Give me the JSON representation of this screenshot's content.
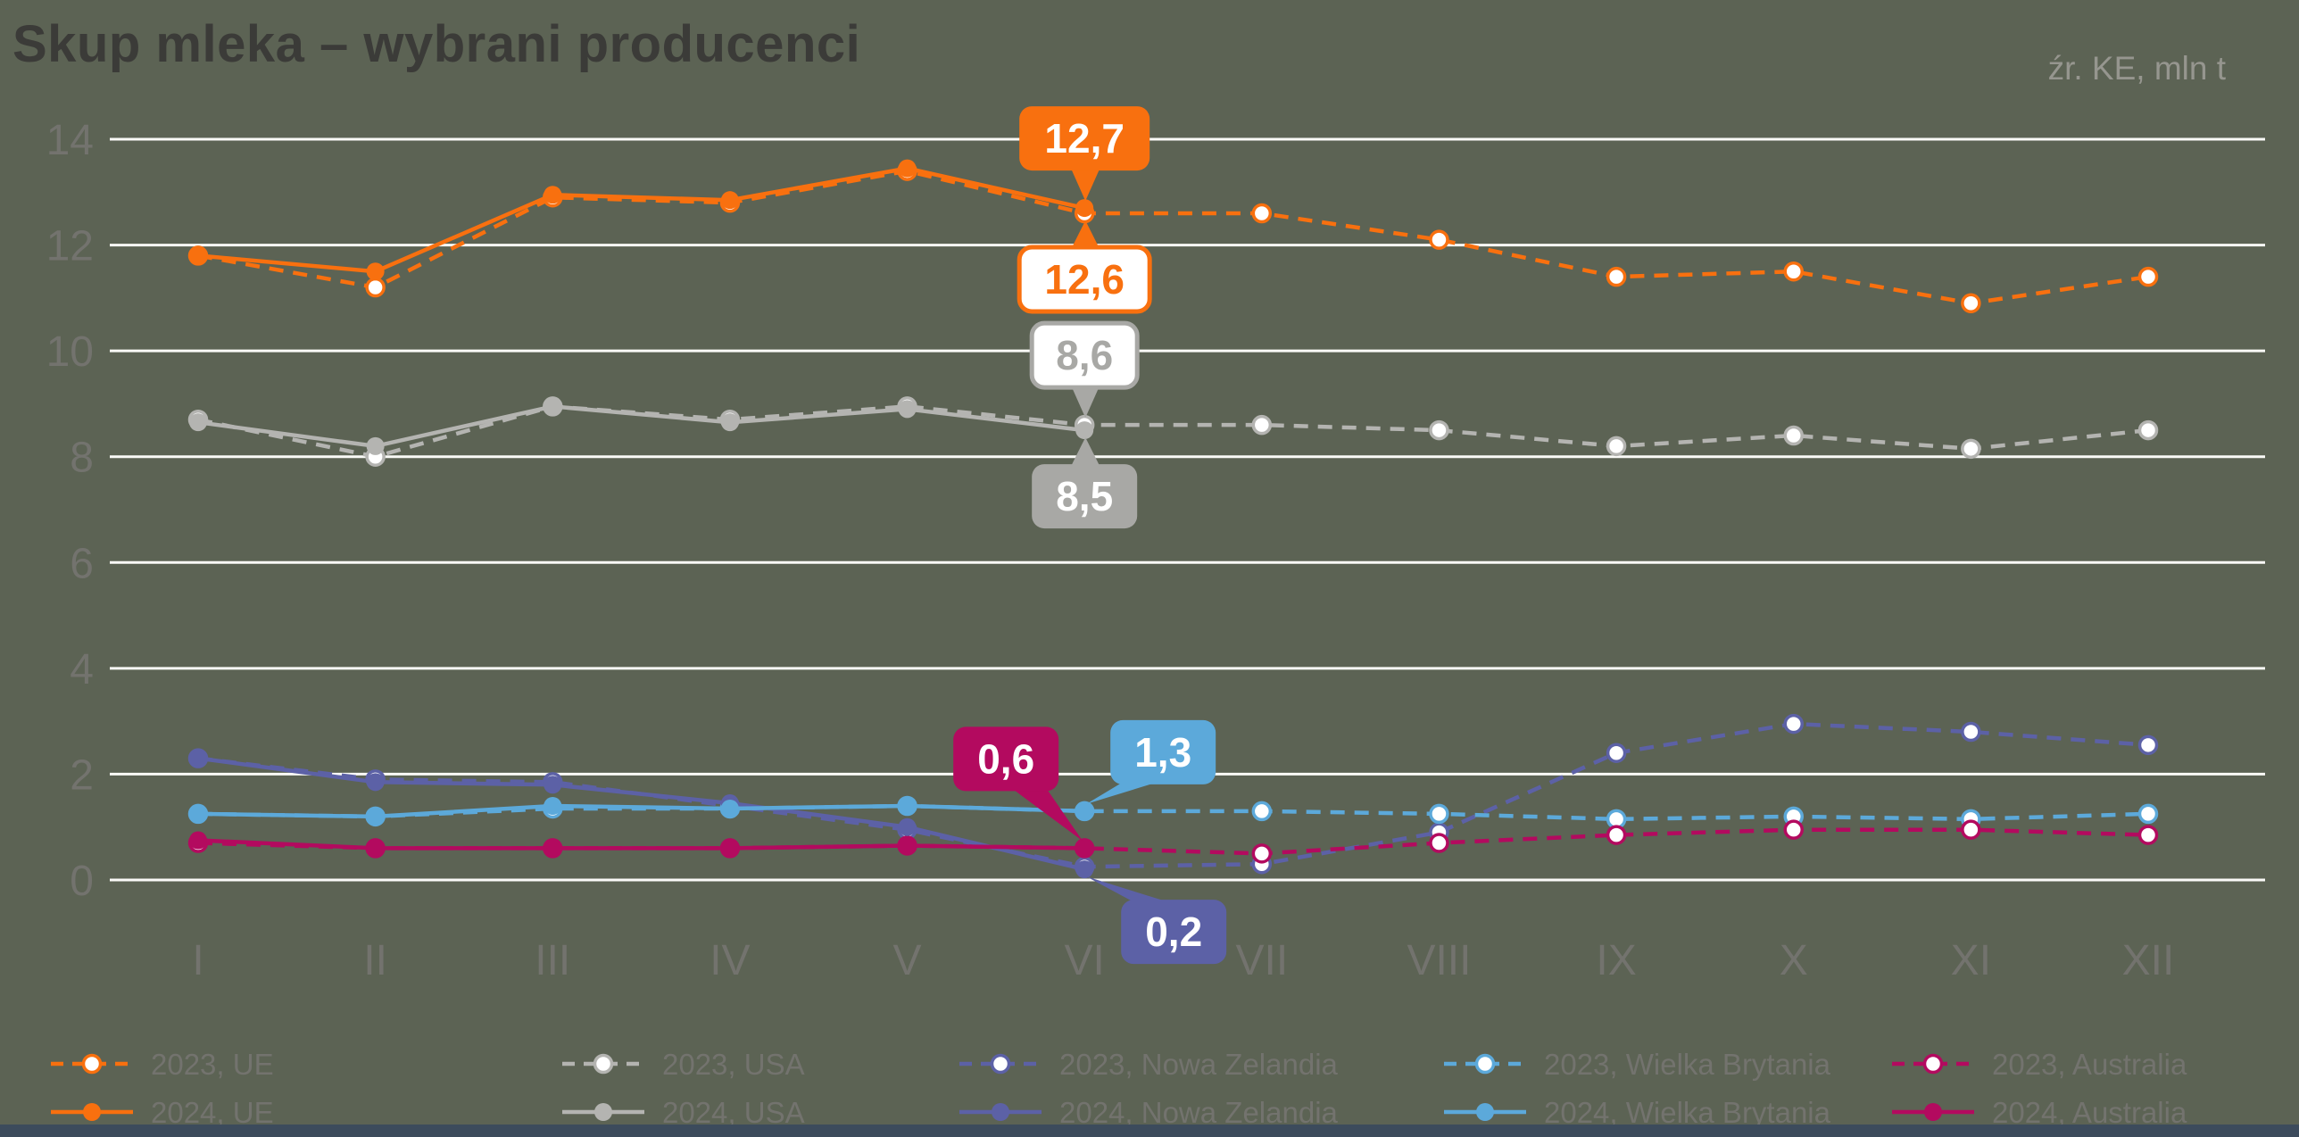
{
  "chart_data": {
    "type": "line",
    "title": "Skup mleka – wybrani producenci",
    "source_note": "źr. KE, mln t",
    "unit": "mln t",
    "categories": [
      "I",
      "II",
      "III",
      "IV",
      "V",
      "VI",
      "VII",
      "VIII",
      "IX",
      "X",
      "XI",
      "XII"
    ],
    "ylim": [
      0,
      14
    ],
    "yticks": [
      0,
      2,
      4,
      6,
      8,
      10,
      12,
      14
    ],
    "grid": true,
    "legend_position": "bottom",
    "series": [
      {
        "name": "2023, UE",
        "color": "#F8700F",
        "line": "dashed",
        "marker": "open",
        "values": [
          11.8,
          11.2,
          12.9,
          12.8,
          13.4,
          12.6,
          12.6,
          12.1,
          11.4,
          11.5,
          10.9,
          11.4
        ]
      },
      {
        "name": "2023, USA",
        "color": "#B4B4B1",
        "line": "dashed",
        "marker": "open",
        "values": [
          8.7,
          8.0,
          8.95,
          8.7,
          8.95,
          8.6,
          8.6,
          8.5,
          8.2,
          8.4,
          8.15,
          8.5
        ]
      },
      {
        "name": "2023, Nowa Zelandia",
        "color": "#5C61A6",
        "line": "dashed",
        "marker": "open",
        "values": [
          2.3,
          1.9,
          1.85,
          1.4,
          0.95,
          0.25,
          0.3,
          0.9,
          2.4,
          2.95,
          2.8,
          2.55
        ]
      },
      {
        "name": "2023, Wielka Brytania",
        "color": "#5CA9DA",
        "line": "dashed",
        "marker": "open",
        "values": [
          1.25,
          1.2,
          1.35,
          1.35,
          1.4,
          1.3,
          1.3,
          1.25,
          1.15,
          1.2,
          1.15,
          1.25
        ]
      },
      {
        "name": "2023, Australia",
        "color": "#B30A5F",
        "line": "dashed",
        "marker": "open",
        "values": [
          0.7,
          0.6,
          0.6,
          0.6,
          0.65,
          0.6,
          0.5,
          0.7,
          0.85,
          0.95,
          0.95,
          0.85
        ]
      },
      {
        "name": "2024, UE",
        "color": "#F8700F",
        "line": "solid",
        "marker": "filled",
        "values": [
          11.8,
          11.5,
          12.95,
          12.85,
          13.45,
          12.7
        ]
      },
      {
        "name": "2024, USA",
        "color": "#B4B4B1",
        "line": "solid",
        "marker": "filled",
        "values": [
          8.65,
          8.2,
          8.95,
          8.65,
          8.9,
          8.5
        ]
      },
      {
        "name": "2024, Nowa Zelandia",
        "color": "#5C61A6",
        "line": "solid",
        "marker": "filled",
        "values": [
          2.3,
          1.85,
          1.8,
          1.45,
          1.0,
          0.2
        ]
      },
      {
        "name": "2024, Wielka Brytania",
        "color": "#5CA9DA",
        "line": "solid",
        "marker": "filled",
        "values": [
          1.25,
          1.2,
          1.4,
          1.35,
          1.4,
          1.3
        ]
      },
      {
        "name": "2024, Australia",
        "color": "#B30A5F",
        "line": "solid",
        "marker": "filled",
        "values": [
          0.75,
          0.6,
          0.6,
          0.6,
          0.65,
          0.6
        ]
      }
    ],
    "callouts": [
      {
        "series": "2024, UE",
        "category": "VI",
        "label": "12,7",
        "style": "filled",
        "color": "#F8700F",
        "placement": "above"
      },
      {
        "series": "2023, UE",
        "category": "VI",
        "label": "12,6",
        "style": "outlined",
        "color": "#F8700F",
        "placement": "below"
      },
      {
        "series": "2023, USA",
        "category": "VI",
        "label": "8,6",
        "style": "outlined",
        "color": "#A8A8A5",
        "placement": "above"
      },
      {
        "series": "2024, USA",
        "category": "VI",
        "label": "8,5",
        "style": "filled",
        "color": "#A8A8A5",
        "placement": "below"
      },
      {
        "series": "2024, Australia",
        "category": "VI",
        "label": "0,6",
        "style": "filled",
        "color": "#B30A5F",
        "placement": "above-left"
      },
      {
        "series": "2024, Wielka Brytania",
        "category": "VI",
        "label": "1,3",
        "style": "filled",
        "color": "#5CA9DA",
        "placement": "above-right"
      },
      {
        "series": "2024, Nowa Zelandia",
        "category": "VI",
        "label": "0,2",
        "style": "filled",
        "color": "#5C61A6",
        "placement": "below-right"
      }
    ]
  },
  "colors": {
    "background": "#5C6354",
    "grid": "#FAFAF7",
    "title_text": "#3B3B38",
    "axis_text": "#73736E",
    "legend_text": "#73736E",
    "source_text": "#96968F",
    "callout_text_on_fill": "#FFFFFF",
    "footer_bar": "#3C4B5C"
  }
}
